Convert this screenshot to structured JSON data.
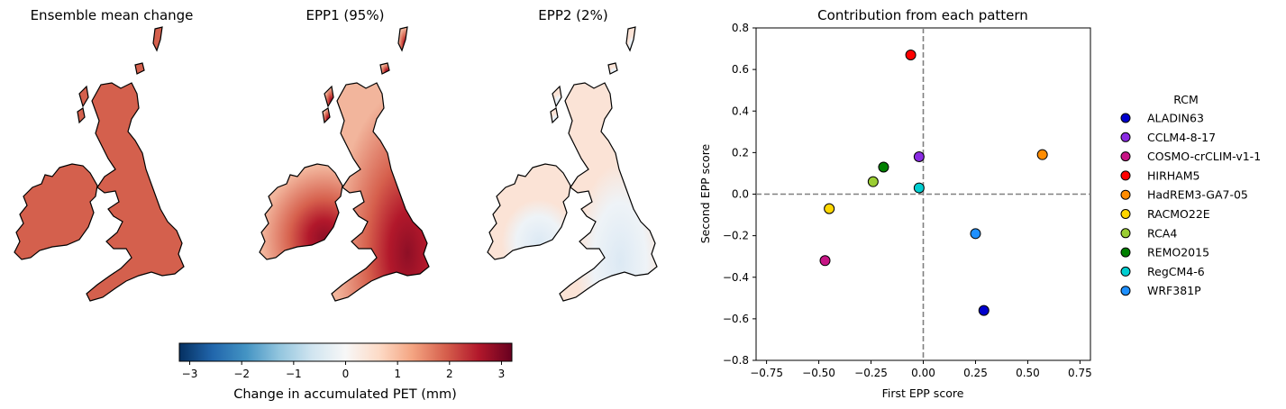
{
  "colors": {
    "mean_fill": "#d4604d",
    "epp1_light": "#f2a58a",
    "epp1_mid": "#d55a4a",
    "epp1_dark": "#8e0f26",
    "epp2_light": "#fbe7dc",
    "epp2_blue": "#e3eef6",
    "outline": "#000000",
    "zero_line": "#808080"
  },
  "maps": [
    {
      "id": "mean",
      "title": "Ensemble mean change"
    },
    {
      "id": "epp1",
      "title": "EPP1 (95%)"
    },
    {
      "id": "epp2",
      "title": "EPP2 (2%)"
    }
  ],
  "colorbar": {
    "label": "Change in accumulated PET (mm)",
    "range": [
      -3.2,
      3.2
    ],
    "ticks": [
      -3,
      -2,
      -1,
      0,
      1,
      2,
      3
    ],
    "tick_labels": [
      "−3",
      "−2",
      "−1",
      "0",
      "1",
      "2",
      "3"
    ],
    "colormap": "RdBu_r",
    "stops": [
      "#053061",
      "#2166ac",
      "#4393c3",
      "#92c5de",
      "#d1e5f0",
      "#f7f7f7",
      "#fddbc7",
      "#f4a582",
      "#d6604d",
      "#b2182b",
      "#67001f"
    ]
  },
  "chart_data": {
    "type": "scatter",
    "title": "Contribution from each pattern",
    "xlabel": "First EPP score",
    "ylabel": "Second EPP score",
    "xlim": [
      -0.8,
      0.8
    ],
    "ylim": [
      -0.8,
      0.8
    ],
    "xticks": [
      -0.75,
      -0.5,
      -0.25,
      0.0,
      0.25,
      0.5,
      0.75
    ],
    "xtick_labels": [
      "−0.75",
      "−0.50",
      "−0.25",
      "0.00",
      "0.25",
      "0.50",
      "0.75"
    ],
    "yticks": [
      -0.8,
      -0.6,
      -0.4,
      -0.2,
      0.0,
      0.2,
      0.4,
      0.6,
      0.8
    ],
    "ytick_labels": [
      "−0.8",
      "−0.6",
      "−0.4",
      "−0.2",
      "0.0",
      "0.2",
      "0.4",
      "0.6",
      "0.8"
    ],
    "reference_lines": {
      "x": 0,
      "y": 0,
      "style": "dashed"
    },
    "legend": {
      "title": "RCM",
      "placement": "outside-right"
    },
    "points": [
      {
        "name": "ALADIN63",
        "x": 0.29,
        "y": -0.56,
        "color": "#0000cd"
      },
      {
        "name": "CCLM4-8-17",
        "x": -0.02,
        "y": 0.18,
        "color": "#8a2be2"
      },
      {
        "name": "COSMO-crCLIM-v1-1",
        "x": -0.47,
        "y": -0.32,
        "color": "#c71585"
      },
      {
        "name": "HIRHAM5",
        "x": -0.06,
        "y": 0.67,
        "color": "#ff0000"
      },
      {
        "name": "HadREM3-GA7-05",
        "x": 0.57,
        "y": 0.19,
        "color": "#ff8c00"
      },
      {
        "name": "RACMO22E",
        "x": -0.45,
        "y": -0.07,
        "color": "#ffd700"
      },
      {
        "name": "RCA4",
        "x": -0.24,
        "y": 0.06,
        "color": "#9acd32"
      },
      {
        "name": "REMO2015",
        "x": -0.19,
        "y": 0.13,
        "color": "#008000"
      },
      {
        "name": "RegCM4-6",
        "x": -0.02,
        "y": 0.03,
        "color": "#00ced1"
      },
      {
        "name": "WRF381P",
        "x": 0.25,
        "y": -0.19,
        "color": "#1e90ff"
      }
    ]
  }
}
